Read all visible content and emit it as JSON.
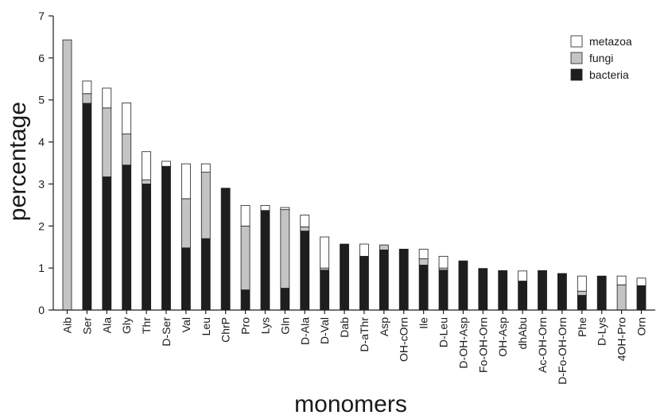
{
  "chart_data": {
    "type": "bar",
    "stacked": true,
    "title": "",
    "xlabel": "monomers",
    "ylabel": "percentage",
    "ylim": [
      0,
      7
    ],
    "yticks": [
      "0",
      "1",
      "2",
      "3",
      "4",
      "5",
      "6",
      "7"
    ],
    "grid": false,
    "legend_position": "top-right",
    "categories": [
      "Aib",
      "Ser",
      "Ala",
      "Gly",
      "Thr",
      "D-Ser",
      "Val",
      "Leu",
      "ChrP",
      "Pro",
      "Lys",
      "Gln",
      "D-Ala",
      "D-Val",
      "Dab",
      "D-aThr",
      "Asp",
      "OH-cOrn",
      "Ile",
      "D-Leu",
      "D-OH-Asp",
      "Fo-OH-Orn",
      "OH-Asp",
      "dhAbu",
      "Ac-OH-Orn",
      "D-Fo-OH-Orn",
      "Phe",
      "D-Lys",
      "4OH-Pro",
      "Orn"
    ],
    "series": [
      {
        "name": "bacteria",
        "color": "#1e1e1e",
        "values": [
          0,
          4.92,
          3.17,
          3.45,
          3.0,
          3.42,
          1.48,
          1.7,
          2.9,
          0.48,
          2.37,
          0.52,
          1.88,
          0.95,
          1.57,
          1.28,
          1.43,
          1.45,
          1.07,
          0.95,
          1.17,
          0.99,
          0.94,
          0.69,
          0.94,
          0.87,
          0.35,
          0.81,
          0,
          0.58
        ]
      },
      {
        "name": "fungi",
        "color": "#c4c4c4",
        "values": [
          6.43,
          0.23,
          1.64,
          0.74,
          0.1,
          0,
          1.17,
          1.58,
          0,
          1.52,
          0,
          1.87,
          0.1,
          0.05,
          0,
          0,
          0.12,
          0,
          0.15,
          0.05,
          0,
          0,
          0,
          0,
          0,
          0,
          0.1,
          0,
          0.6,
          0
        ]
      },
      {
        "name": "metazoa",
        "color": "#ffffff",
        "values": [
          0,
          0.3,
          0.47,
          0.74,
          0.67,
          0.12,
          0.83,
          0.2,
          0,
          0.49,
          0.12,
          0.05,
          0.28,
          0.74,
          0,
          0.29,
          0,
          0,
          0.23,
          0.28,
          0,
          0,
          0,
          0.24,
          0,
          0,
          0.36,
          0,
          0.21,
          0.18
        ]
      }
    ]
  }
}
